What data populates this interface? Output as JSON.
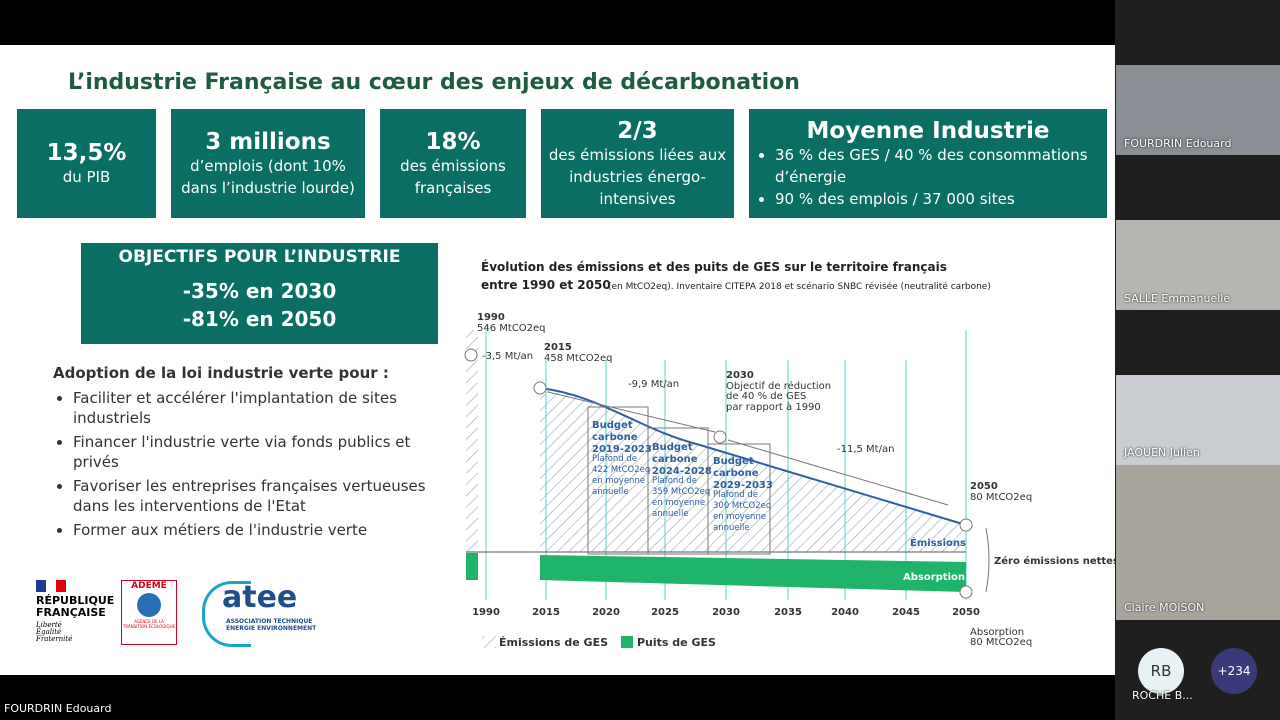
{
  "meeting": {
    "presenter_label": "FOURDRIN Edouard",
    "participants": [
      "FOURDRIN Edouard",
      "SALLE Emmanuelle",
      "JAOUEN Julien",
      "Claire MOISON"
    ],
    "avatar_initials": "RB",
    "avatar_name": "ROCHE B...",
    "more_count": "+234"
  },
  "slide": {
    "title": "L’industrie Française au cœur des enjeux de décarbonation",
    "stats": [
      {
        "value": "13,5%",
        "label": "du PIB"
      },
      {
        "value": "3 millions",
        "label": "d’emplois (dont 10% dans l’industrie lourde)"
      },
      {
        "value": "18%",
        "label": "des émissions françaises"
      },
      {
        "value": "2/3",
        "label": "des émissions liées aux industries énergo-intensives"
      }
    ],
    "industry": {
      "title": "Moyenne Industrie",
      "bullets": [
        "36 % des GES / 40 % des consommations d’énergie",
        "90 % des emplois / 37 000 sites"
      ]
    },
    "objectives": {
      "title": "OBJECTIFS POUR L’INDUSTRIE",
      "lines": [
        "-35% en 2030",
        "-81% en 2050"
      ]
    },
    "adoption": {
      "heading": "Adoption de la loi industrie verte pour :",
      "bullets": [
        "Faciliter et accélérer l'implantation de sites industriels",
        "Financer l'industrie verte via fonds publics et privés",
        "Favoriser les entreprises françaises vertueuses dans les interventions de l'Etat",
        "Former aux métiers de l'industrie verte"
      ]
    },
    "logos": {
      "republique": "RÉPUBLIQUE FRANÇAISE",
      "motto": [
        "Liberté",
        "Égalité",
        "Fraternité"
      ],
      "ademe": "ADEME",
      "ademe_sub": "AGENCE DE LA TRANSITION ÉCOLOGIQUE",
      "atee": "atee",
      "atee_sub": [
        "ASSOCIATION TECHNIQUE",
        "ÉNERGIE ENVIRONNEMENT"
      ]
    },
    "chart": {
      "title_line1": "Évolution des émissions et des puits de GES sur le territoire français",
      "title_line2": "entre 1990 et 2050",
      "title_note": "(en MtCO2eq). Inventaire CITEPA 2018 et scénario SNBC révisée (neutralité carbone)",
      "labels": {
        "y1990": "1990",
        "v1990": "546 MtCO2eq",
        "rate1": "-3,5 Mt/an",
        "y2015": "2015",
        "v2015": "458 MtCO2eq",
        "rate2": "-9,9 Mt/an",
        "y2030": "2030",
        "objective": [
          "Objectif de réduction",
          "de 40 % de GES",
          "par rapport à 1990"
        ],
        "rate3": "-11,5 Mt/an",
        "y2050": "2050",
        "v2050": "80 MtCO2eq",
        "emissions": "Émissions",
        "absorption": "Absorption",
        "net_zero": "Zéro émissions nettes",
        "absorption_end": "Absorption",
        "absorption_value": "80 MtCO2eq"
      },
      "budgets": [
        [
          "Budget",
          "carbone",
          "2019-2023",
          "Plafond de",
          "422 MtCO2eq",
          "en moyenne",
          "annuelle"
        ],
        [
          "Budget",
          "carbone",
          "2024-2028",
          "Plafond de",
          "359 MtCO2eq",
          "en moyenne",
          "annuelle"
        ],
        [
          "Budget",
          "carbone",
          "2029-2033",
          "Plafond de",
          "300 MtCO2eq",
          "en moyenne",
          "annuelle"
        ]
      ],
      "years": [
        "1990",
        "2015",
        "2020",
        "2025",
        "2030",
        "2035",
        "2040",
        "2045",
        "2050"
      ],
      "legend": [
        "Émissions de GES",
        "Puits de GES"
      ]
    }
  }
}
